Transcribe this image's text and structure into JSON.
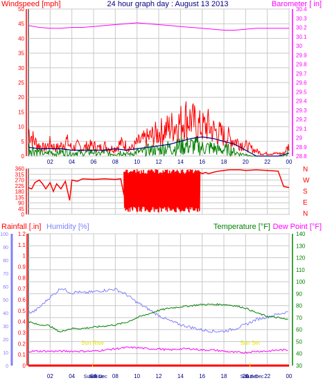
{
  "title": "24 hour graph day : August 13 2013",
  "colors": {
    "background": "#ffffff",
    "plot_bg": "#ffffff",
    "grid": "#c8c8c8",
    "windspeed": "#ff0000",
    "wind_avg": "#008000",
    "wind_mean": "#000080",
    "barometer": "#ff00ff",
    "direction": "#ff0000",
    "rainfall": "#ff0000",
    "humidity": "#8080ff",
    "temperature": "#008000",
    "dewpoint": "#ff00ff",
    "sun_label": "#e6e600",
    "axis_text": "#000080",
    "title_text": "#000080"
  },
  "chart_data": [
    {
      "type": "line",
      "title": "24 hour graph day : August 13 2013",
      "x_ticks": [
        "02",
        "04",
        "06",
        "08",
        "10",
        "12",
        "14",
        "16",
        "18",
        "20",
        "22",
        "00"
      ],
      "y_left": {
        "label": "Windspeed [mph]",
        "ticks": [
          0,
          5,
          10,
          15,
          20,
          25,
          30,
          35,
          40,
          45,
          50
        ],
        "range": [
          0,
          50
        ]
      },
      "y_right": {
        "label": "Barometer [ in]",
        "ticks": [
          "28.8",
          "28.9",
          "29",
          "29.1",
          "29.2",
          "29.3",
          "29.4",
          "29.5",
          "29.6",
          "29.7",
          "29.8",
          "29.9",
          "30",
          "30.1",
          "30.2",
          "30.3",
          "30.4"
        ],
        "range": [
          28.8,
          30.4
        ]
      },
      "grid": true,
      "series": [
        {
          "name": "Windspeed [mph]",
          "x": [
            0,
            0.5,
            1,
            1.5,
            2,
            2.5,
            3,
            3.5,
            4,
            4.5,
            5,
            5.5,
            6,
            6.5,
            7,
            7.5,
            8,
            8.5,
            9,
            9.5,
            10,
            10.5,
            11,
            11.5,
            12,
            12.5,
            13,
            13.5,
            14,
            14.5,
            15,
            15.5,
            16,
            16.5,
            17,
            17.5,
            18,
            18.5,
            19,
            19.5,
            20,
            20.5,
            21,
            21.5,
            22,
            22.5,
            23,
            23.5,
            24
          ],
          "values": [
            10,
            6,
            4,
            3,
            5,
            3,
            4,
            6,
            3,
            4,
            3,
            4,
            4,
            3,
            4,
            3,
            3,
            5,
            4,
            3,
            5,
            6,
            7,
            8,
            9,
            10,
            11,
            12,
            13,
            15,
            14,
            12,
            11,
            12,
            10,
            9,
            8,
            7,
            6,
            5,
            4,
            3,
            2,
            1,
            1,
            1,
            1,
            1,
            4
          ]
        },
        {
          "name": "Wind gust",
          "x": [
            0,
            0.5,
            1,
            1.5,
            2,
            2.5,
            3,
            3.5,
            4,
            4.5,
            5,
            5.5,
            6,
            6.5,
            7,
            7.5,
            8,
            8.5,
            9,
            9.5,
            10,
            10.5,
            11,
            11.5,
            12,
            12.5,
            13,
            13.5,
            14,
            14.5,
            15,
            15.5,
            16,
            16.5,
            17,
            17.5,
            18,
            18.5,
            19,
            19.5,
            20,
            20.5,
            21,
            21.5,
            22,
            22.5,
            23,
            23.5,
            24
          ],
          "values": [
            4,
            3,
            2,
            1,
            2,
            1,
            2,
            2,
            1,
            2,
            1,
            2,
            2,
            1,
            2,
            1,
            1,
            2,
            1,
            1,
            2,
            2,
            3,
            3,
            3,
            4,
            4,
            4,
            5,
            5,
            5,
            5,
            4,
            4,
            4,
            3,
            3,
            3,
            2,
            1,
            1,
            0,
            0,
            0,
            0,
            0,
            0,
            0,
            2
          ]
        },
        {
          "name": "Wind average",
          "x": [
            0,
            1,
            2,
            3,
            4,
            5,
            6,
            7,
            8,
            9,
            10,
            11,
            12,
            13,
            14,
            15,
            16,
            17,
            18,
            19,
            20,
            21,
            22,
            23,
            24
          ],
          "values": [
            3,
            2.5,
            2.5,
            2.5,
            2,
            2,
            2,
            2,
            2.5,
            2,
            2.5,
            3,
            3.5,
            4,
            5,
            6,
            6.5,
            6,
            5,
            4,
            2,
            0,
            0,
            0,
            1
          ]
        },
        {
          "name": "Barometer [ in]",
          "x": [
            0,
            1,
            2,
            3,
            4,
            5,
            6,
            7,
            8,
            9,
            10,
            11,
            12,
            13,
            14,
            15,
            16,
            17,
            18,
            19,
            20,
            21,
            22,
            23,
            24
          ],
          "values": [
            30.22,
            30.2,
            30.19,
            30.19,
            30.2,
            30.2,
            30.21,
            30.22,
            30.23,
            30.24,
            30.25,
            30.24,
            30.23,
            30.22,
            30.21,
            30.2,
            30.19,
            30.18,
            30.17,
            30.17,
            30.18,
            30.19,
            30.19,
            30.19,
            30.19
          ]
        }
      ]
    },
    {
      "type": "line",
      "x_ticks": [],
      "y_left": {
        "ticks": [
          0,
          45,
          90,
          135,
          180,
          225,
          270,
          315,
          360
        ],
        "range": [
          0,
          360
        ]
      },
      "y_right": {
        "ticks": [
          "N",
          "W",
          "S",
          "E",
          "N"
        ]
      },
      "series": [
        {
          "name": "Wind direction",
          "x": [
            0,
            0.3,
            0.6,
            1,
            1.3,
            1.6,
            2,
            2.3,
            2.6,
            3,
            3.4,
            3.8,
            4,
            4.5,
            5,
            6,
            7,
            8,
            8.5,
            8.8,
            9,
            9.2,
            9.4,
            9.6,
            9.8,
            10,
            10.2,
            10.4,
            10.6,
            10.8,
            11,
            11.2,
            11.4,
            11.6,
            11.8,
            12,
            12.2,
            12.4,
            12.6,
            12.8,
            13,
            13.2,
            13.4,
            13.6,
            13.8,
            14,
            14.2,
            14.4,
            14.6,
            14.8,
            15,
            15.2,
            15.4,
            15.6,
            15.8,
            16,
            16.3,
            16.6,
            17,
            17.5,
            18,
            18.5,
            19,
            19.5,
            20,
            21,
            22,
            23,
            23.5,
            24
          ],
          "values": [
            210,
            200,
            250,
            270,
            240,
            200,
            250,
            180,
            240,
            200,
            260,
            110,
            270,
            260,
            280,
            275,
            280,
            275,
            280,
            150,
            350,
            20,
            340,
            30,
            350,
            20,
            330,
            20,
            350,
            30,
            340,
            20,
            350,
            20,
            340,
            20,
            330,
            50,
            350,
            20,
            340,
            30,
            350,
            20,
            340,
            20,
            350,
            30,
            340,
            20,
            350,
            30,
            340,
            20,
            330,
            320,
            330,
            320,
            330,
            340,
            345,
            350,
            350,
            350,
            345,
            350,
            345,
            340,
            220,
            210
          ]
        }
      ]
    },
    {
      "type": "line",
      "x_ticks": [
        "02",
        "04",
        "06",
        "08",
        "10",
        "12",
        "14",
        "16",
        "18",
        "20",
        "22",
        "00"
      ],
      "y_rain": {
        "label": "Rainfall [.in]",
        "ticks": [
          "0",
          "0.1",
          "0.2",
          "0.3",
          "0.4",
          "0.5",
          "0.6",
          "0.7",
          "0.8",
          "0.9",
          "1",
          "1.1",
          "1.2"
        ],
        "range": [
          0,
          1.2
        ]
      },
      "y_humidity": {
        "label": "Humidity [%]",
        "ticks": [
          "0",
          "10",
          "20",
          "30",
          "40",
          "50",
          "60",
          "70",
          "80",
          "90",
          "100"
        ],
        "range": [
          0,
          100
        ]
      },
      "y_right": {
        "label": "Temperature [°F]",
        "ticks": [
          "30",
          "40",
          "50",
          "60",
          "70",
          "80",
          "90",
          "100",
          "110",
          "120",
          "130",
          "140"
        ],
        "range": [
          30,
          140
        ]
      },
      "dewpoint_label": "Dew Point [°F]",
      "annotations": [
        {
          "text": "Sun Rise",
          "x": 5.9
        },
        {
          "text": "Sun Set",
          "x": 20.4
        },
        {
          "text": "Sun Rise",
          "x": 6.0
        },
        {
          "text": "Sun Dec",
          "x": 6.4
        },
        {
          "text": "Sun Set",
          "x": 20.3
        },
        {
          "text": "Sun Dec",
          "x": 20.8
        }
      ],
      "series": [
        {
          "name": "Humidity [%]",
          "x": [
            0,
            0.5,
            1,
            1.5,
            2,
            2.5,
            3,
            3.5,
            4,
            4.5,
            5,
            6,
            7,
            8,
            9,
            10,
            11,
            12,
            13,
            14,
            15,
            16,
            17,
            18,
            19,
            20,
            21,
            22,
            23,
            24
          ],
          "values": [
            40,
            41,
            44,
            48,
            52,
            55,
            59,
            57,
            55,
            56,
            55,
            56,
            57,
            58,
            54,
            48,
            43,
            38,
            34,
            31,
            29,
            27,
            26,
            26,
            28,
            31,
            35,
            37,
            39,
            41
          ]
        },
        {
          "name": "Temperature [°F]",
          "x": [
            0,
            0.5,
            1,
            1.5,
            2,
            2.5,
            3,
            3.5,
            4,
            5,
            6,
            7,
            8,
            9,
            10,
            11,
            12,
            13,
            14,
            15,
            16,
            17,
            18,
            19,
            20,
            21,
            22,
            23,
            24
          ],
          "values": [
            67,
            65,
            64,
            64,
            63,
            60,
            58,
            60,
            61,
            61,
            62,
            63,
            64,
            66,
            70,
            73,
            76,
            78,
            79,
            80,
            81,
            81,
            81,
            80,
            78,
            74,
            71,
            70,
            68
          ]
        },
        {
          "name": "Dew Point [°F]",
          "x": [
            0,
            1,
            2,
            3,
            4,
            5,
            6,
            7,
            8,
            9,
            10,
            11,
            12,
            13,
            14,
            15,
            16,
            17,
            18,
            19,
            20,
            21,
            22,
            23,
            24
          ],
          "values": [
            42,
            42,
            42,
            42,
            42,
            42,
            42,
            43,
            44,
            45,
            45,
            44,
            44,
            43,
            44,
            44,
            43,
            43,
            42,
            41,
            41,
            42,
            42,
            43,
            43
          ]
        },
        {
          "name": "Rainfall [.in]",
          "x": [
            0,
            24
          ],
          "values": [
            0,
            0
          ]
        }
      ]
    }
  ]
}
